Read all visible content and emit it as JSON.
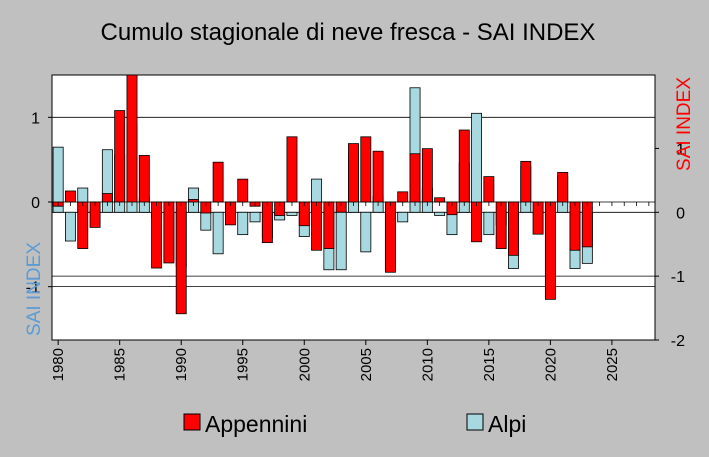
{
  "chart_data": {
    "type": "bar",
    "title": "Cumulo stagionale di neve fresca - SAI INDEX",
    "left_axis_label": "SAI INDEX",
    "right_axis_label": "SAI INDEX",
    "left_axis_color": "#5b9bd5",
    "right_axis_color": "#ff0000",
    "x": [
      1980,
      1981,
      1982,
      1983,
      1984,
      1985,
      1986,
      1987,
      1988,
      1989,
      1990,
      1991,
      1992,
      1993,
      1994,
      1995,
      1996,
      1997,
      1998,
      1999,
      2000,
      2001,
      2002,
      2003,
      2004,
      2005,
      2006,
      2007,
      2008,
      2009,
      2010,
      2011,
      2012,
      2013,
      2014,
      2015,
      2016,
      2017,
      2018,
      2019,
      2020,
      2021,
      2022,
      2023
    ],
    "xlim": [
      1979.5,
      2028.5
    ],
    "xticks": [
      "1980",
      "1985",
      "1990",
      "1995",
      "2000",
      "2005",
      "2010",
      "2015",
      "2020",
      "2025"
    ],
    "series": [
      {
        "name": "Appennini",
        "color": "#ff0000",
        "axis": "upper",
        "ylim": [
          -1.63,
          1.5
        ],
        "yticks": [
          "1",
          "0",
          "-1"
        ],
        "values": [
          -0.05,
          0.13,
          -0.55,
          -0.3,
          0.1,
          1.08,
          1.5,
          0.55,
          -0.78,
          -0.72,
          -1.32,
          0.03,
          -0.13,
          0.47,
          -0.27,
          0.27,
          -0.05,
          -0.48,
          -0.16,
          0.77,
          -0.28,
          -0.57,
          -0.55,
          -0.12,
          0.69,
          0.77,
          0.6,
          -0.83,
          0.12,
          0.57,
          0.63,
          0.05,
          -0.15,
          0.85,
          -0.47,
          0.3,
          -0.55,
          -0.63,
          0.48,
          -0.38,
          -1.15,
          0.35,
          -0.57,
          -0.53
        ]
      },
      {
        "name": "Alpi",
        "color": "#a8d8e0",
        "axis": "lower",
        "ylim": [
          -2,
          2.15
        ],
        "yticks": [
          "1",
          "0",
          "-1",
          "-2"
        ],
        "values": [
          1.02,
          -0.45,
          0.38,
          0.02,
          0.98,
          0.9,
          1.38,
          0.22,
          -0.08,
          -0.75,
          -0.85,
          0.38,
          -0.28,
          -0.65,
          0.1,
          -0.35,
          -0.15,
          -0.4,
          -0.12,
          -0.05,
          -0.38,
          0.52,
          -0.9,
          -0.9,
          0.88,
          -0.62,
          0.25,
          -0.9,
          -0.15,
          1.95,
          0.38,
          -0.05,
          -0.35,
          0.77,
          1.55,
          -0.35,
          -0.2,
          -0.88,
          0.72,
          -0.02,
          -0.02,
          0.57,
          -0.88,
          -0.8
        ]
      }
    ],
    "grid": true,
    "legend_position": "bottom"
  }
}
